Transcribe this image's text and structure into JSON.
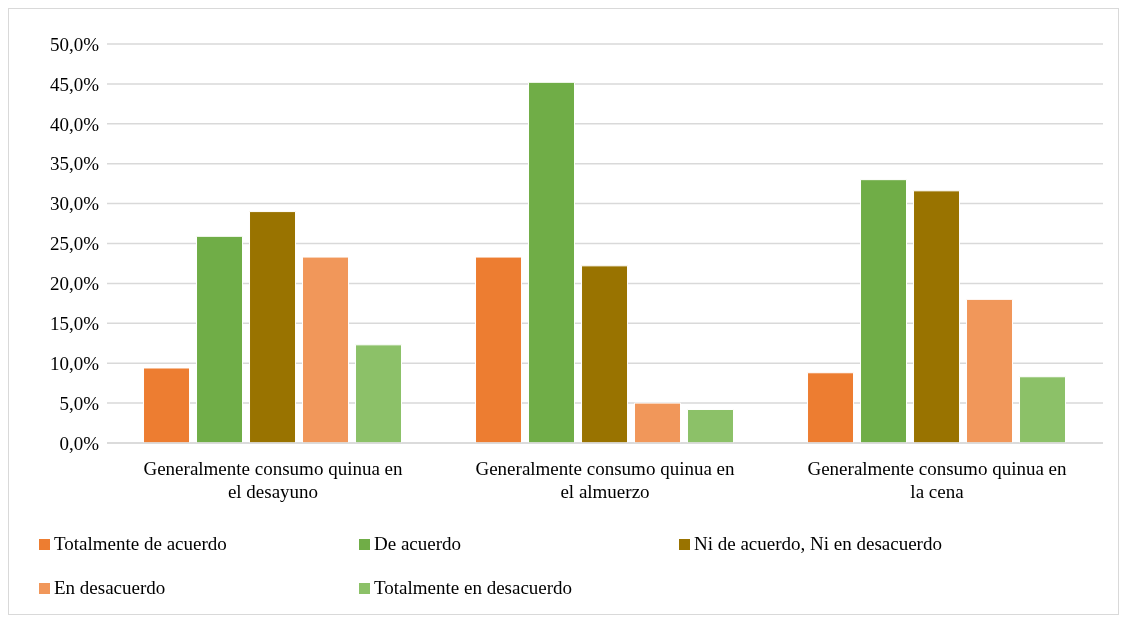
{
  "chart_data": {
    "type": "bar",
    "categories": [
      "Generalmente consumo quinua en el desayuno",
      "Generalmente consumo quinua en el almuerzo",
      "Generalmente consumo quinua en la cena"
    ],
    "series": [
      {
        "name": "Totalmente de acuerdo",
        "color": "#ed7d31",
        "values": [
          9.4,
          23.3,
          8.8
        ]
      },
      {
        "name": "De acuerdo",
        "color": "#70ad47",
        "values": [
          25.9,
          45.2,
          33.0
        ]
      },
      {
        "name": "Ni de acuerdo, Ni en desacuerdo",
        "color": "#997300",
        "values": [
          29.0,
          22.2,
          31.6
        ]
      },
      {
        "name": "En desacuerdo",
        "color": "#f1975a",
        "values": [
          23.3,
          5.0,
          18.0
        ]
      },
      {
        "name": "Totalmente en desacuerdo",
        "color": "#8cc168",
        "values": [
          12.3,
          4.2,
          8.3
        ]
      }
    ],
    "ylim": [
      0,
      50
    ],
    "yticks": [
      {
        "value": 0,
        "label": "0,0%"
      },
      {
        "value": 5,
        "label": "5,0%"
      },
      {
        "value": 10,
        "label": "10,0%"
      },
      {
        "value": 15,
        "label": "15,0%"
      },
      {
        "value": 20,
        "label": "20,0%"
      },
      {
        "value": 25,
        "label": "25,0%"
      },
      {
        "value": 30,
        "label": "30,0%"
      },
      {
        "value": 35,
        "label": "35,0%"
      },
      {
        "value": 40,
        "label": "40,0%"
      },
      {
        "value": 45,
        "label": "45,0%"
      },
      {
        "value": 50,
        "label": "50,0%"
      }
    ],
    "grid": "y",
    "legend": "bottom"
  }
}
